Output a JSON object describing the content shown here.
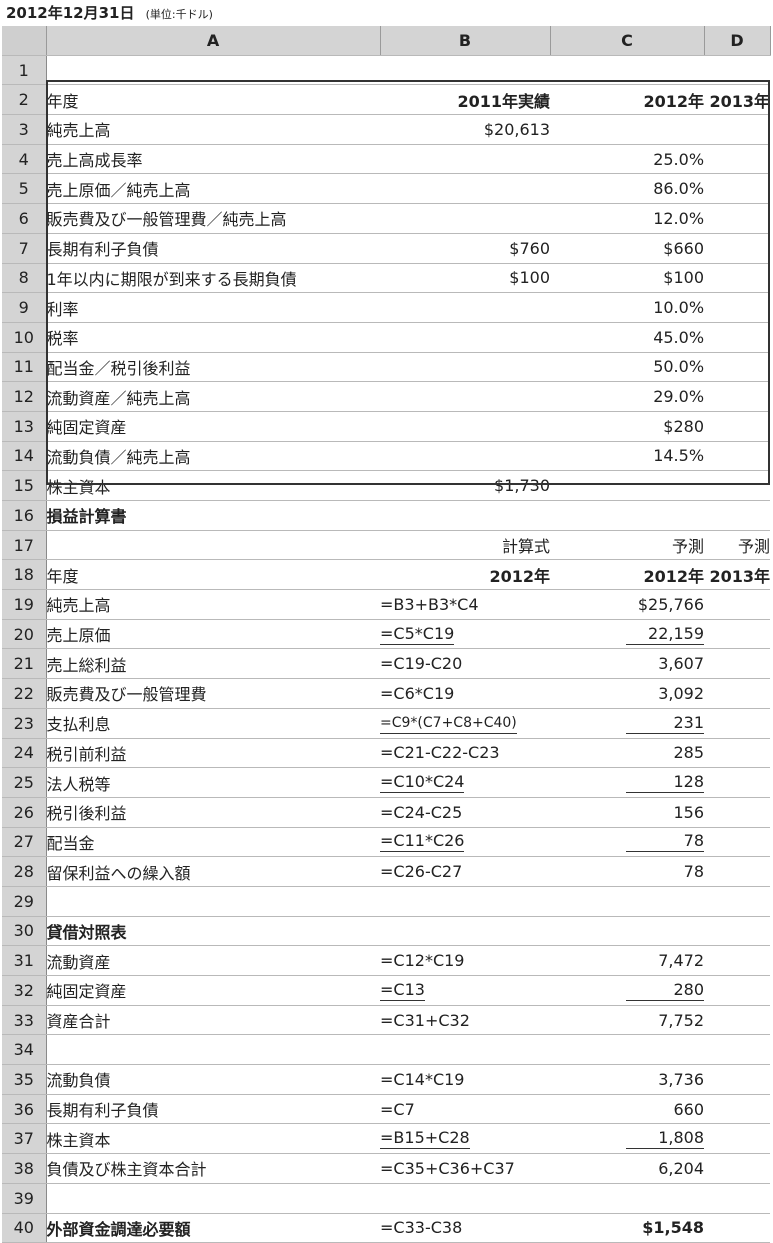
{
  "title": {
    "main": "2012年12月31日",
    "unit": "(単位:千ドル)"
  },
  "columns": [
    "A",
    "B",
    "C",
    "D"
  ],
  "rows": [
    {
      "n": "1",
      "a": "",
      "b": "",
      "c": "",
      "d": ""
    },
    {
      "n": "2",
      "a": "年度",
      "b": "2011年実績",
      "c": "2012年",
      "d": "2013年",
      "bold_bcd": true
    },
    {
      "n": "3",
      "a": "純売上高",
      "b": "$20,613",
      "c": "",
      "d": ""
    },
    {
      "n": "4",
      "a": "売上高成長率",
      "b": "",
      "c": "25.0%",
      "d": ""
    },
    {
      "n": "5",
      "a": "売上原価／純売上高",
      "b": "",
      "c": "86.0%",
      "d": ""
    },
    {
      "n": "6",
      "a": "販売費及び一般管理費／純売上高",
      "b": "",
      "c": "12.0%",
      "d": ""
    },
    {
      "n": "7",
      "a": "長期有利子負債",
      "b": "$760",
      "c": "$660",
      "d": ""
    },
    {
      "n": "8",
      "a": "1年以内に期限が到来する長期負債",
      "b": "$100",
      "c": "$100",
      "d": ""
    },
    {
      "n": "9",
      "a": "利率",
      "b": "",
      "c": "10.0%",
      "d": ""
    },
    {
      "n": "10",
      "a": "税率",
      "b": "",
      "c": "45.0%",
      "d": ""
    },
    {
      "n": "11",
      "a": "配当金／税引後利益",
      "b": "",
      "c": "50.0%",
      "d": ""
    },
    {
      "n": "12",
      "a": "流動資産／純売上高",
      "b": "",
      "c": "29.0%",
      "d": ""
    },
    {
      "n": "13",
      "a": "純固定資産",
      "b": "",
      "c": "$280",
      "d": ""
    },
    {
      "n": "14",
      "a": "流動負債／純売上高",
      "b": "",
      "c": "14.5%",
      "d": ""
    },
    {
      "n": "15",
      "a": "株主資本",
      "b": "$1,730",
      "c": "",
      "d": ""
    },
    {
      "n": "16",
      "a": "損益計算書",
      "b": "",
      "c": "",
      "d": "",
      "bold_a": true
    },
    {
      "n": "17",
      "a": "",
      "b": "計算式",
      "c": "予測",
      "d": "予測"
    },
    {
      "n": "18",
      "a": "年度",
      "b": "2012年",
      "c": "2012年",
      "d": "2013年",
      "bold_bcd": true
    },
    {
      "n": "19",
      "a": "純売上高",
      "f": "=B3+B3*C4",
      "c": "$25,766",
      "d": ""
    },
    {
      "n": "20",
      "a": "売上原価",
      "f": "=C5*C19",
      "c": "22,159",
      "d": "",
      "ul": true
    },
    {
      "n": "21",
      "a": "売上総利益",
      "f": "=C19-C20",
      "c": "3,607",
      "d": ""
    },
    {
      "n": "22",
      "a": "販売費及び一般管理費",
      "f": "=C6*C19",
      "c": "3,092",
      "d": ""
    },
    {
      "n": "23",
      "a": "支払利息",
      "f": "=C9*(C7+C8+C40)",
      "c": "231",
      "d": "",
      "ul": true
    },
    {
      "n": "24",
      "a": "税引前利益",
      "f": "=C21-C22-C23",
      "c": "285",
      "d": ""
    },
    {
      "n": "25",
      "a": "法人税等",
      "f": "=C10*C24",
      "c": "128",
      "d": "",
      "ul": true
    },
    {
      "n": "26",
      "a": "税引後利益",
      "f": "=C24-C25",
      "c": "156",
      "d": ""
    },
    {
      "n": "27",
      "a": "配当金",
      "f": "=C11*C26",
      "c": "78",
      "d": "",
      "ul": true
    },
    {
      "n": "28",
      "a": "留保利益への繰入額",
      "f": "=C26-C27",
      "c": "78",
      "d": ""
    },
    {
      "n": "29",
      "a": "",
      "b": "",
      "c": "",
      "d": ""
    },
    {
      "n": "30",
      "a": "貸借対照表",
      "b": "",
      "c": "",
      "d": "",
      "bold_a": true
    },
    {
      "n": "31",
      "a": "流動資産",
      "f": "=C12*C19",
      "c": "7,472",
      "d": ""
    },
    {
      "n": "32",
      "a": "純固定資産",
      "f": "=C13",
      "c": "280",
      "d": "",
      "ul": true
    },
    {
      "n": "33",
      "a": "資産合計",
      "f": "=C31+C32",
      "c": "7,752",
      "d": ""
    },
    {
      "n": "34",
      "a": "",
      "b": "",
      "c": "",
      "d": ""
    },
    {
      "n": "35",
      "a": "流動負債",
      "f": "=C14*C19",
      "c": "3,736",
      "d": ""
    },
    {
      "n": "36",
      "a": "長期有利子負債",
      "f": "=C7",
      "c": "660",
      "d": ""
    },
    {
      "n": "37",
      "a": "株主資本",
      "f": "=B15+C28",
      "c": "1,808",
      "d": "",
      "ul": true
    },
    {
      "n": "38",
      "a": "負債及び株主資本合計",
      "f": "=C35+C36+C37",
      "c": "6,204",
      "d": ""
    },
    {
      "n": "39",
      "a": "",
      "b": "",
      "c": "",
      "d": ""
    },
    {
      "n": "40",
      "a": "外部資金調達必要額",
      "f": "=C33-C38",
      "c": "$1,548",
      "d": "",
      "bold_a": true,
      "bold_c": true
    }
  ]
}
